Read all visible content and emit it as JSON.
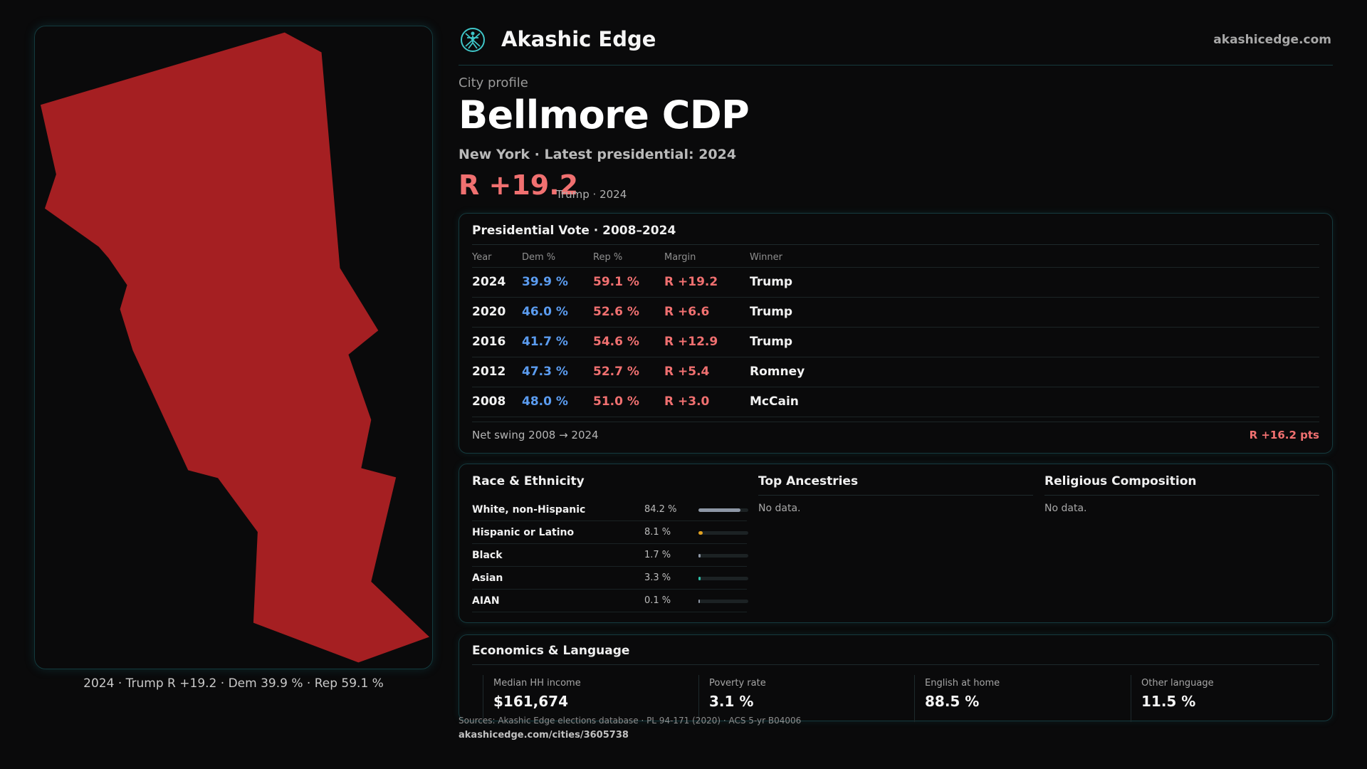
{
  "map": {
    "caption": "2024 · Trump R +19.2 · Dem 39.9 % · Rep 59.1 %",
    "fill_color": "#a51f22"
  },
  "header": {
    "brand": "Akashic Edge",
    "domain": "akashicedge.com",
    "logo_icon": "compass-figure-logo"
  },
  "profile": {
    "kicker": "City profile",
    "title": "Bellmore CDP",
    "subline": "New York  · Latest presidential: 2024",
    "margin": "R +19.2",
    "margin_sub": "Trump · 2024"
  },
  "vote": {
    "title": "Presidential Vote · 2008–2024",
    "columns": [
      "Year",
      "Dem %",
      "Rep %",
      "Margin",
      "Winner"
    ],
    "rows": [
      {
        "year": "2024",
        "dem": "39.9 %",
        "rep": "59.1 %",
        "margin": "R +19.2",
        "winner": "Trump"
      },
      {
        "year": "2020",
        "dem": "46.0 %",
        "rep": "52.6 %",
        "margin": "R +6.6",
        "winner": "Trump"
      },
      {
        "year": "2016",
        "dem": "41.7 %",
        "rep": "54.6 %",
        "margin": "R +12.9",
        "winner": "Trump"
      },
      {
        "year": "2012",
        "dem": "47.3 %",
        "rep": "52.7 %",
        "margin": "R +5.4",
        "winner": "Romney"
      },
      {
        "year": "2008",
        "dem": "48.0 %",
        "rep": "51.0 %",
        "margin": "R +3.0",
        "winner": "McCain"
      }
    ],
    "swing_label": "Net swing 2008 → 2024",
    "swing_value": "R +16.2 pts"
  },
  "race": {
    "title": "Race & Ethnicity",
    "rows": [
      {
        "label": "White, non-Hispanic",
        "value": "84.2 %",
        "pct": 84.2,
        "color": "#8e97a6"
      },
      {
        "label": "Hispanic or Latino",
        "value": "8.1 %",
        "pct": 8.1,
        "color": "#e0a020"
      },
      {
        "label": "Black",
        "value": "1.7 %",
        "pct": 1.7,
        "color": "#8e97a6"
      },
      {
        "label": "Asian",
        "value": "3.3 %",
        "pct": 3.3,
        "color": "#2fc0a8"
      },
      {
        "label": "AIAN",
        "value": "0.1 %",
        "pct": 0.1,
        "color": "#8e97a6"
      }
    ]
  },
  "ancestries": {
    "title": "Top Ancestries",
    "empty": "No data."
  },
  "religion": {
    "title": "Religious Composition",
    "empty": "No data."
  },
  "economics": {
    "title": "Economics & Language",
    "stats": [
      {
        "label": "Median HH income",
        "value": "$161,674"
      },
      {
        "label": "Poverty rate",
        "value": "3.1 %"
      },
      {
        "label": "English at home",
        "value": "88.5 %"
      },
      {
        "label": "Other language",
        "value": "11.5 %"
      }
    ]
  },
  "footer": {
    "sources": "Sources: Akashic Edge elections database · PL 94-171 (2020) · ACS 5-yr B04006",
    "url": "akashicedge.com/cities/3605738"
  }
}
